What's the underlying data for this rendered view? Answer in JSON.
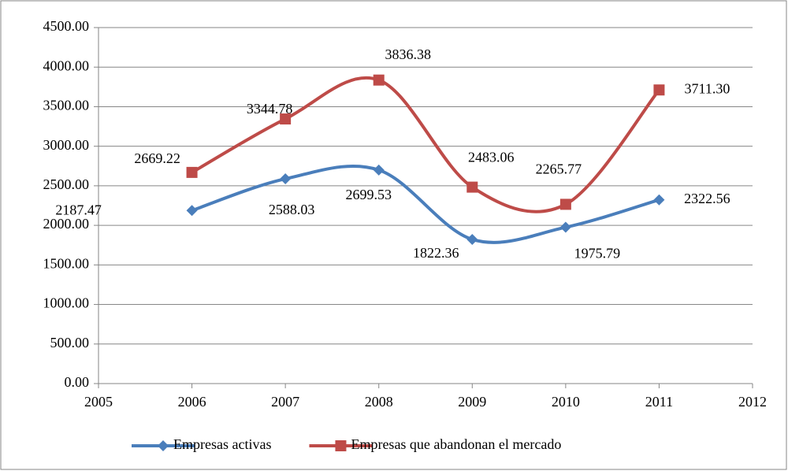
{
  "chart_data": {
    "type": "line",
    "x": [
      2006,
      2007,
      2008,
      2009,
      2010,
      2011
    ],
    "series": [
      {
        "name": "Empresas activas",
        "color": "#4a7ebb",
        "marker": "diamond",
        "values": [
          2187.47,
          2588.03,
          2699.53,
          1822.36,
          1975.79,
          2322.56
        ],
        "value_labels": [
          "2187.47",
          "2588.03",
          "2699.53",
          "1822.36",
          "1975.79",
          "2322.56"
        ]
      },
      {
        "name": "Empresas que abandonan el mercado",
        "color": "#be4b48",
        "marker": "square",
        "values": [
          2669.22,
          3344.78,
          3836.38,
          2483.06,
          2265.77,
          3711.3
        ],
        "value_labels": [
          "2669.22",
          "3344.78",
          "3836.38",
          "2483.06",
          "2265.77",
          "3711.30"
        ]
      }
    ],
    "xlim": [
      2005,
      2012
    ],
    "xticks": [
      2005,
      2006,
      2007,
      2008,
      2009,
      2010,
      2011,
      2012
    ],
    "ylim": [
      0,
      4500
    ],
    "yticks": [
      {
        "value": 0,
        "label": "0.00"
      },
      {
        "value": 500,
        "label": "500.00"
      },
      {
        "value": 1000,
        "label": "1000.00"
      },
      {
        "value": 1500,
        "label": "1500.00"
      },
      {
        "value": 2000,
        "label": "2000.00"
      },
      {
        "value": 2500,
        "label": "2500.00"
      },
      {
        "value": 3000,
        "label": "3000.00"
      },
      {
        "value": 3500,
        "label": "3500.00"
      },
      {
        "value": 4000,
        "label": "4000.00"
      },
      {
        "value": 4500,
        "label": "4500.00"
      }
    ],
    "grid": true,
    "smooth": true,
    "legend": "bottom"
  }
}
